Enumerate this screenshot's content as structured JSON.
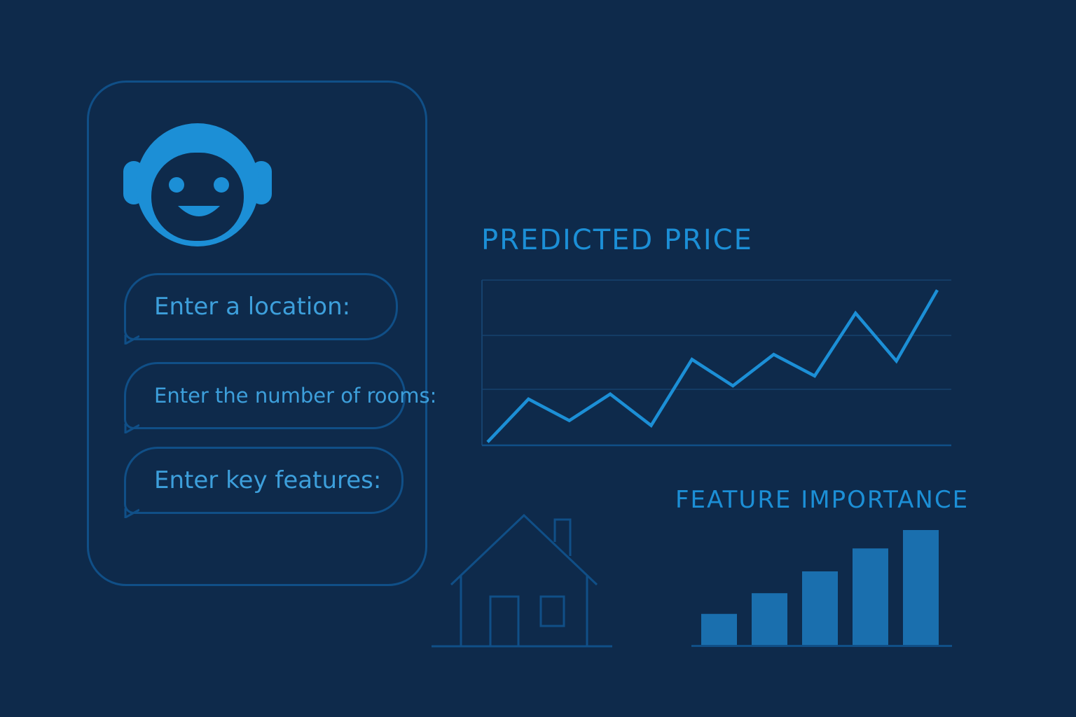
{
  "colors": {
    "background": "#0e2a4b",
    "card_border": "#104f87",
    "accent": "#1c8fd6",
    "bubble_text": "#3d9fdb",
    "bar_fill": "#1a6fae"
  },
  "chat": {
    "avatar_icon": "robot-face-icon",
    "prompts": [
      {
        "label": "Enter a location:"
      },
      {
        "label": "Enter the number of rooms:"
      },
      {
        "label": "Enter key features:"
      }
    ]
  },
  "illustration": {
    "house_icon": "house-icon"
  },
  "chart_data": [
    {
      "type": "line",
      "title": "PREDICTED PRICE",
      "xlabel": "",
      "ylabel": "",
      "grid": true,
      "ylim": [
        0,
        100
      ],
      "series": [
        {
          "values": [
            2,
            28,
            15,
            31,
            12,
            52,
            36,
            55,
            42,
            80,
            51,
            94
          ]
        }
      ]
    },
    {
      "type": "bar",
      "title": "FEATURE IMPORTANCE",
      "xlabel": "",
      "ylabel": "",
      "ylim": [
        0,
        100
      ],
      "values": [
        27,
        45,
        64,
        84,
        100
      ]
    }
  ]
}
